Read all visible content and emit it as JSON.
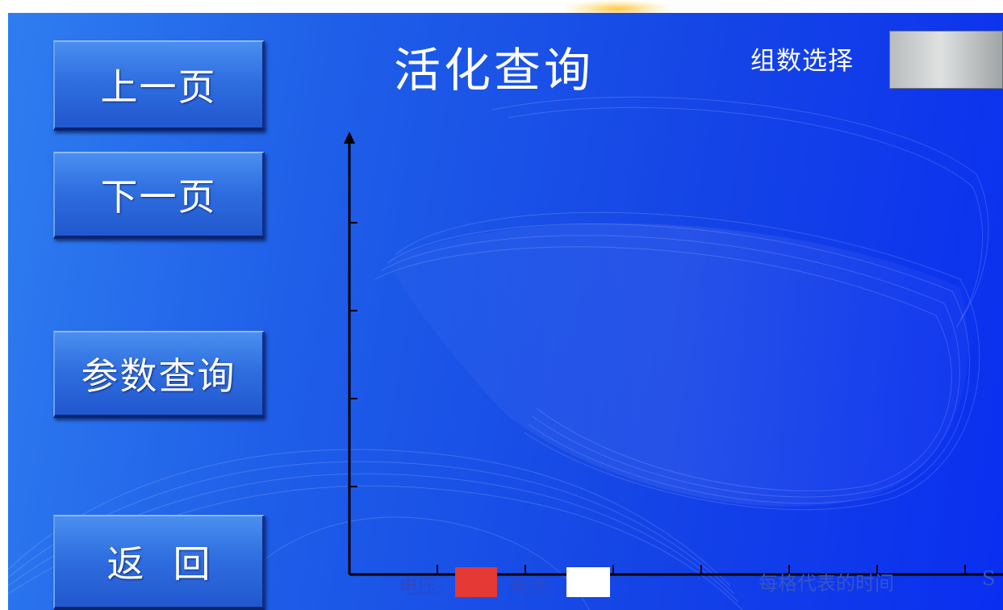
{
  "nav": {
    "prev_page": "上一页",
    "next_page": "下一页",
    "param_query": "参数查询",
    "back": "返回"
  },
  "header": {
    "title": "活化查询",
    "group_select_label": "组数选择",
    "group_select_value": ""
  },
  "chart_data": {
    "type": "line",
    "series": [],
    "legend": [
      "电压:",
      "电流:"
    ],
    "legend_colors": [
      "#e53935",
      "#ffffff"
    ],
    "time_label": "每格代表的时间",
    "time_unit": "S",
    "x_ticks": 7,
    "y_ticks": 4
  },
  "colors": {
    "background": "#1545e6",
    "button": "#2f6fe0",
    "axis": "#000000"
  }
}
